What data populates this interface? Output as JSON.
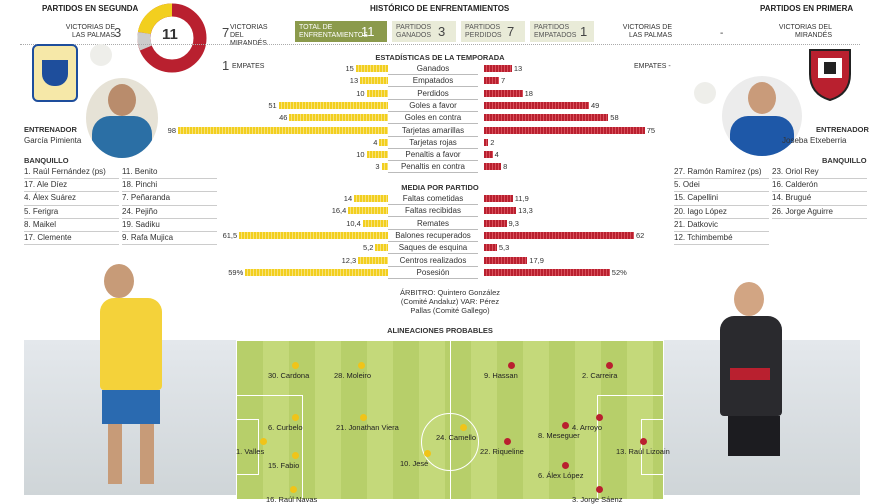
{
  "header": {
    "left_title": "PARTIDOS EN SEGUNDA",
    "center_title": "HISTÓRICO DE ENFRENTAMIENTOS",
    "right_title": "PARTIDOS EN PRIMERA",
    "left_team_label": "VICTORIAS DE LAS PALMAS",
    "left_team_value": "3",
    "circle_value": "11",
    "history": [
      {
        "label": "VICTORIAS DEL MIRANDÉS",
        "value": "7"
      },
      {
        "label": "TOTAL DE ENFRENTAMIENTOS",
        "value": "11"
      },
      {
        "label": "PARTIDOS GANADOS",
        "value": "3"
      },
      {
        "label": "PARTIDOS PERDIDOS",
        "value": "7"
      },
      {
        "label": "PARTIDOS EMPATADOS",
        "value": "1"
      }
    ],
    "right_labels": [
      "VICTORIAS DE LAS PALMAS",
      "-",
      "VICTORIAS DEL MIRANDÉS"
    ],
    "empates_left_value": "1",
    "empates_label": "EMPATES",
    "empates_right": "EMPATES -"
  },
  "season": {
    "title": "ESTADÍSTICAS DE LA TEMPORADA",
    "rows": [
      {
        "label": "Ganados",
        "l": 15,
        "r": 13
      },
      {
        "label": "Empatados",
        "l": 13,
        "r": 7
      },
      {
        "label": "Perdidos",
        "l": 10,
        "r": 18
      },
      {
        "label": "Goles a favor",
        "l": 51,
        "r": 49
      },
      {
        "label": "Goles en contra",
        "l": 46,
        "r": 58
      },
      {
        "label": "Tarjetas amarillas",
        "l": 98,
        "r": 75
      },
      {
        "label": "Tarjetas rojas",
        "l": 4,
        "r": 2
      },
      {
        "label": "Penaltis a favor",
        "l": 10,
        "r": 4
      },
      {
        "label": "Penaltis en contra",
        "l": 3,
        "r": 8
      }
    ]
  },
  "average": {
    "title": "MEDIA POR PARTIDO",
    "rows": [
      {
        "label": "Faltas cometidas",
        "l": "14",
        "r": "11,9",
        "lv": 14,
        "rv": 11.9
      },
      {
        "label": "Faltas recibidas",
        "l": "16,4",
        "r": "13,3",
        "lv": 16.4,
        "rv": 13.3
      },
      {
        "label": "Remates",
        "l": "10,4",
        "r": "9,3",
        "lv": 10.4,
        "rv": 9.3
      },
      {
        "label": "Balones recuperados",
        "l": "61,5",
        "r": "62",
        "lv": 61.5,
        "rv": 62
      },
      {
        "label": "Saques de esquina",
        "l": "5,2",
        "r": "5,3",
        "lv": 5.2,
        "rv": 5.3
      },
      {
        "label": "Centros realizados",
        "l": "12,3",
        "r": "17,9",
        "lv": 12.3,
        "rv": 17.9
      },
      {
        "label": "Posesión",
        "l": "59%",
        "r": "52%",
        "lv": 59,
        "rv": 52
      }
    ]
  },
  "referee": {
    "text1": "ÁRBITRO: Quintero González",
    "text2": "(Comité Andaluz) VAR: Pérez",
    "text3": "Pallas (Comité Gallego)"
  },
  "lineups_title": "ALINEACIONES PROBABLES",
  "left_coach": {
    "label": "ENTRENADOR",
    "name": "García Pimienta"
  },
  "right_coach": {
    "label": "ENTRENADOR",
    "name": "Joseba Etxeberria"
  },
  "bench_label": "BANQUILLO",
  "left_bench_a": [
    "1. Raúl Fernández (ps)",
    "17. Ale Díez",
    "4. Álex Suárez",
    "5. Ferigra",
    "8. Maikel",
    "17. Clemente"
  ],
  "left_bench_b": [
    "11. Benito",
    "18. Pinchi",
    "7. Peñaranda",
    "24. Pejiño",
    "19. Sadiku",
    "9. Rafa Mujica"
  ],
  "right_bench_a": [
    "27. Ramón Ramírez (ps)",
    "5. Odei",
    "15. Capellini",
    "20. Iago López",
    "21. Datkovic",
    "12. Tchimbembé"
  ],
  "right_bench_b": [
    "23. Oriol Rey",
    "16. Calderón",
    "14. Brugué",
    "26. Jorge Aguirre"
  ],
  "home_players": [
    {
      "name": "30. Cardona"
    },
    {
      "name": "28. Moleiro"
    },
    {
      "name": "6. Curbelo"
    },
    {
      "name": "21. Jonathan Viera"
    },
    {
      "name": "24. Camello"
    },
    {
      "name": "1. Valles"
    },
    {
      "name": "15. Fabio"
    },
    {
      "name": "10. Jesé"
    },
    {
      "name": "16. Raúl Navas"
    }
  ],
  "away_players": [
    {
      "name": "9. Hassan"
    },
    {
      "name": "2. Carreira"
    },
    {
      "name": "4. Arroyo"
    },
    {
      "name": "8. Meseguer"
    },
    {
      "name": "22. Riqueline"
    },
    {
      "name": "13. Raúl Lizoain"
    },
    {
      "name": "6. Álex López"
    },
    {
      "name": "3. Jorge Sáenz"
    }
  ],
  "colors": {
    "yellow": "#f2cf1f",
    "red": "#b9202f",
    "accent": "#8b9a4c"
  }
}
